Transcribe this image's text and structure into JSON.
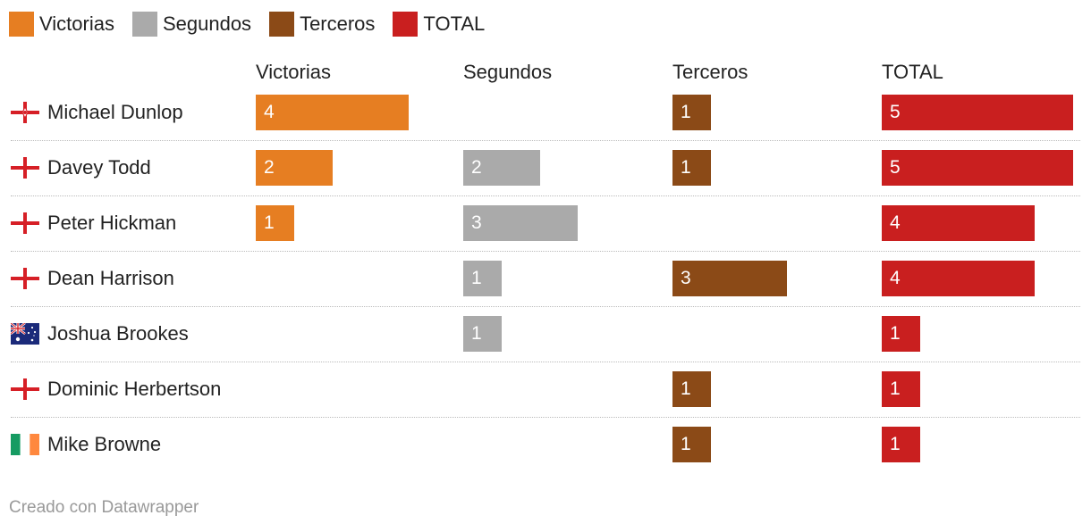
{
  "legend": [
    {
      "label": "Victorias",
      "color": "#e67e22"
    },
    {
      "label": "Segundos",
      "color": "#aaaaaa"
    },
    {
      "label": "Terceros",
      "color": "#8b4a17"
    },
    {
      "label": "TOTAL",
      "color": "#c91f1f"
    }
  ],
  "footer": "Creado con Datawrapper",
  "chart_data": {
    "type": "bar",
    "orientation": "horizontal",
    "layout": "small-multiples",
    "categories": [
      "Michael Dunlop",
      "Davey Todd",
      "Peter Hickman",
      "Dean Harrison",
      "Joshua Brookes",
      "Dominic Herbertson",
      "Mike Browne"
    ],
    "flags": [
      "northern-ireland-flag-icon",
      "england-flag-icon",
      "england-flag-icon",
      "england-flag-icon",
      "australia-flag-icon",
      "england-flag-icon",
      "ireland-flag-icon"
    ],
    "series": [
      {
        "name": "Victorias",
        "color": "#e67e22",
        "values": [
          4,
          2,
          1,
          null,
          null,
          null,
          null
        ]
      },
      {
        "name": "Segundos",
        "color": "#aaaaaa",
        "values": [
          null,
          2,
          3,
          1,
          1,
          null,
          null
        ]
      },
      {
        "name": "Terceros",
        "color": "#8b4a17",
        "values": [
          1,
          1,
          null,
          3,
          null,
          1,
          1
        ]
      },
      {
        "name": "TOTAL",
        "color": "#c91f1f",
        "values": [
          5,
          5,
          4,
          4,
          1,
          1,
          1
        ]
      }
    ],
    "xlim": [
      0,
      5
    ],
    "grid": false,
    "legend_position": "top-left",
    "value_labels": true
  }
}
